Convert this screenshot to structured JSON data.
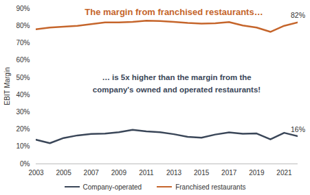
{
  "chart_data": {
    "type": "line",
    "y_label": "EBIT Margin",
    "x": [
      2003,
      2004,
      2005,
      2006,
      2007,
      2008,
      2009,
      2010,
      2011,
      2012,
      2013,
      2014,
      2015,
      2016,
      2017,
      2018,
      2019,
      2020,
      2021,
      2022
    ],
    "series": [
      {
        "name": "Company-operated",
        "color": "#3a4658",
        "values": [
          14,
          12,
          15,
          16.5,
          17.3,
          17.5,
          18.3,
          19.7,
          18.8,
          18.3,
          17.2,
          15.7,
          15.2,
          17,
          18.2,
          17.4,
          17.6,
          14.2,
          18,
          16
        ]
      },
      {
        "name": "Franchised restaurants",
        "color": "#c5652b",
        "values": [
          78,
          79,
          79.5,
          80,
          81,
          82,
          82,
          82.3,
          83,
          82.8,
          82.3,
          81.7,
          81.3,
          81.5,
          82.2,
          80.2,
          79,
          76.5,
          80,
          82
        ]
      }
    ],
    "xlim": [
      2003,
      2022
    ],
    "xticks": [
      2003,
      2005,
      2007,
      2009,
      2011,
      2013,
      2015,
      2017,
      2019,
      2021
    ],
    "ylim": [
      0,
      90
    ],
    "yticks": [
      {
        "value": 0,
        "label": "0%"
      },
      {
        "value": 10,
        "label": "10%"
      },
      {
        "value": 20,
        "label": "20%"
      },
      {
        "value": 30,
        "label": "30%"
      },
      {
        "value": 40,
        "label": "40%"
      },
      {
        "value": 50,
        "label": "50%"
      },
      {
        "value": 60,
        "label": "60%"
      },
      {
        "value": 70,
        "label": "70%"
      },
      {
        "value": 80,
        "label": "80%"
      },
      {
        "value": 90,
        "label": "90%"
      }
    ],
    "grid": false,
    "legend": "bottom",
    "annotations": [
      {
        "text": "The margin from franchised restaurants…",
        "color": "#c5652b"
      },
      {
        "text": "… is 5x higher than the margin from the\ncompany's owned and operated restaurants!",
        "color": "#3a4658"
      },
      {
        "text": "82%",
        "x": 2022,
        "y": 82,
        "color": "#333333"
      },
      {
        "text": "16%",
        "x": 2022,
        "y": 16,
        "color": "#333333"
      }
    ]
  }
}
